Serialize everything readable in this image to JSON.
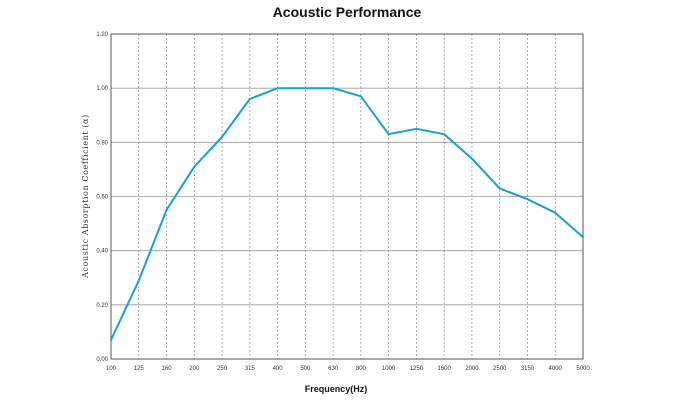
{
  "chart_data": {
    "type": "line",
    "title": "Acoustic Performance",
    "xlabel": "Frequency(Hz)",
    "ylabel": "Acoustic Absorption Coefficient (α)",
    "categories": [
      "100",
      "125",
      "160",
      "200",
      "250",
      "315",
      "400",
      "500",
      "630",
      "800",
      "1000",
      "1250",
      "1600",
      "2000",
      "2500",
      "3150",
      "4000",
      "5000"
    ],
    "series": [
      {
        "values": [
          0.07,
          0.29,
          0.55,
          0.71,
          0.82,
          0.96,
          1.0,
          1.0,
          1.0,
          0.97,
          0.83,
          0.85,
          0.83,
          0.74,
          0.63,
          0.59,
          0.54,
          0.45
        ]
      }
    ],
    "ylim": [
      0,
      1.2
    ],
    "yticks": [
      "0.00",
      "0.20",
      "0.40",
      "0.60",
      "0.80",
      "1.00",
      "1.20"
    ],
    "grid": true,
    "legend": "none",
    "colors": {
      "line": "#1a9ed9",
      "grid_h": "#9a9a9a",
      "grid_v": "#8a8a8a",
      "frame": "#555555"
    }
  }
}
